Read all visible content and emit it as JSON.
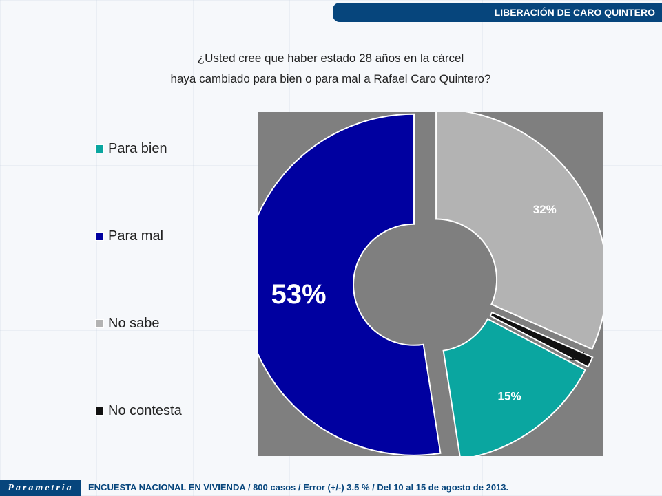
{
  "header": {
    "title": "LIBERACIÓN DE CARO QUINTERO"
  },
  "question": {
    "line1": "¿Usted cree que haber estado 28 años en la cárcel",
    "line2": "haya cambiado para bien o para mal a Rafael Caro Quintero?"
  },
  "footer": {
    "logo": "Parametría",
    "text": "ENCUESTA NACIONAL EN VIVIENDA / 800 casos / Error (+/-) 3.5 % / Del 10 al 15 de agosto de 2013."
  },
  "chart_data": {
    "type": "pie",
    "donut": true,
    "legend_position": "left",
    "categories": [
      "Para bien",
      "Para mal",
      "No sabe",
      "No contesta"
    ],
    "values": [
      15,
      53,
      32,
      1
    ],
    "labels": [
      "15%",
      "53%",
      "32%",
      "1%"
    ],
    "colors": [
      "#0aa6a0",
      "#0000a0",
      "#b3b3b3",
      "#111111"
    ],
    "plot_background": "#7f7f7f"
  }
}
